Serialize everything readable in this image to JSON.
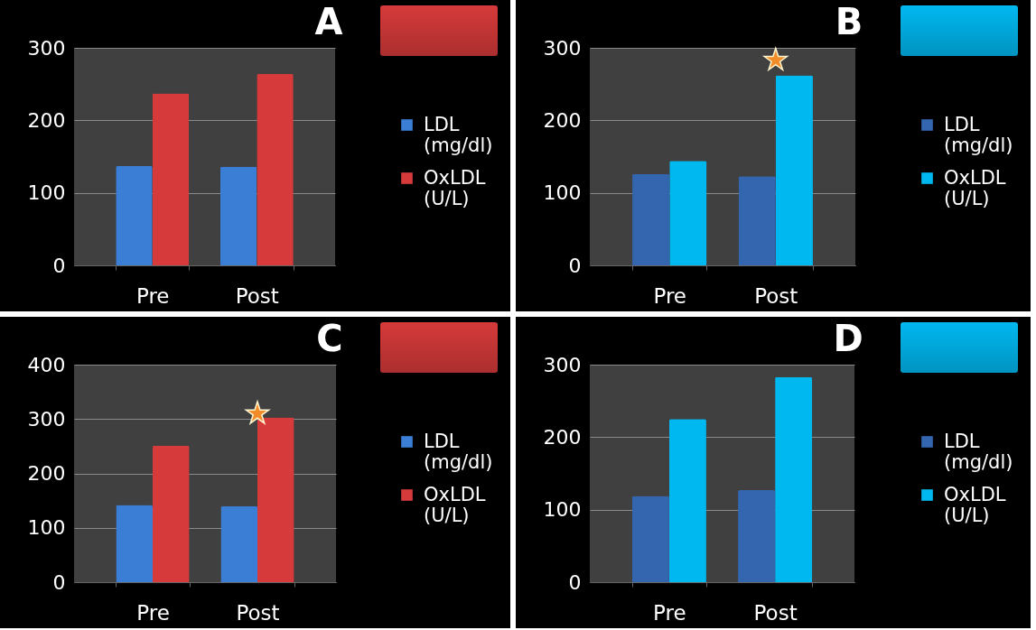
{
  "chart_data": [
    {
      "type": "bar",
      "title": "A",
      "categories": [
        "Pre",
        "Post"
      ],
      "ylim": [
        0,
        300
      ],
      "yticks": [
        0,
        100,
        200,
        300
      ],
      "grid": "y",
      "legend": "right",
      "series": [
        {
          "name": "LDL (mg/dl)",
          "color": "#3a7fd5",
          "values": [
            137,
            136
          ]
        },
        {
          "name": "OxLDL (U/L)",
          "color": "#d63a3a",
          "values": [
            237,
            264
          ]
        }
      ]
    },
    {
      "type": "bar",
      "title": "B",
      "categories": [
        "Pre",
        "Post"
      ],
      "ylim": [
        0,
        300
      ],
      "yticks": [
        0,
        100,
        200,
        300
      ],
      "grid": "y",
      "legend": "right",
      "series": [
        {
          "name": "LDL (mg/dl)",
          "color": "#3466b0",
          "values": [
            126,
            123
          ]
        },
        {
          "name": "OxLDL (U/L)",
          "color": "#00b8f0",
          "values": [
            144,
            262
          ]
        },
        {
          "type": "scatter",
          "marker": "star",
          "color": "#f28c28",
          "x": [
            "Post"
          ],
          "values": [
            283
          ]
        }
      ]
    },
    {
      "type": "bar",
      "title": "C",
      "categories": [
        "Pre",
        "Post"
      ],
      "ylim": [
        0,
        400
      ],
      "yticks": [
        0,
        100,
        200,
        300,
        400
      ],
      "grid": "y",
      "legend": "right",
      "series": [
        {
          "name": "LDL (mg/dl)",
          "color": "#3a7fd5",
          "values": [
            142,
            140
          ]
        },
        {
          "name": "OxLDL (U/L)",
          "color": "#d63a3a",
          "values": [
            251,
            303
          ]
        },
        {
          "type": "scatter",
          "marker": "star",
          "color": "#f28c28",
          "x": [
            "Post"
          ],
          "values": [
            310
          ]
        }
      ]
    },
    {
      "type": "bar",
      "title": "D",
      "categories": [
        "Pre",
        "Post"
      ],
      "ylim": [
        0,
        300
      ],
      "yticks": [
        0,
        100,
        200,
        300
      ],
      "grid": "y",
      "legend": "right",
      "series": [
        {
          "name": "LDL (mg/dl)",
          "color": "#3466b0",
          "values": [
            119,
            127
          ]
        },
        {
          "name": "OxLDL (U/L)",
          "color": "#00b8f0",
          "values": [
            225,
            283
          ]
        }
      ]
    }
  ]
}
